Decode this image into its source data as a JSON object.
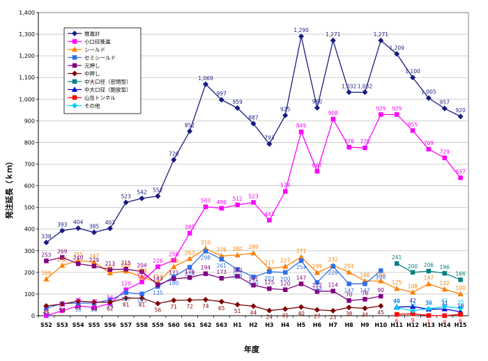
{
  "chart_data": {
    "type": "line",
    "title": "",
    "xlabel": "年度",
    "ylabel": "発注延長（ｋｍ）",
    "ylim": [
      0,
      1400
    ],
    "yticks": [
      "0",
      "100",
      "200",
      "300",
      "400",
      "500",
      "600",
      "700",
      "800",
      "900",
      "1,000",
      "1,100",
      "1,200",
      "1,300",
      "1,400"
    ],
    "grid": true,
    "legend_position": "top-left",
    "categories": [
      "S52",
      "S53",
      "S54",
      "S55",
      "S56",
      "S57",
      "S58",
      "S59",
      "S60",
      "S61",
      "S62",
      "S63",
      "H1",
      "H2",
      "H3",
      "H4",
      "H5",
      "H6",
      "H7",
      "H8",
      "H9",
      "H10",
      "H11",
      "H12",
      "H13",
      "H14",
      "H15"
    ],
    "series": [
      {
        "name": "推進計",
        "color": "#1a1a80",
        "marker": "diamond",
        "values": [
          338,
          393,
          404,
          385,
          403,
          523,
          542,
          552,
          720,
          852,
          1069,
          997,
          959,
          887,
          793,
          925,
          1290,
          960,
          1271,
          1032,
          1032,
          1271,
          1209,
          1100,
          1005,
          957,
          920
        ],
        "labels": [
          "338",
          "393",
          "404",
          "385",
          "403",
          "523",
          "542",
          "552",
          "720",
          "852",
          "1,069",
          "997",
          "959",
          "887",
          "793",
          "925",
          "1,290",
          "960",
          "1,271",
          "1,032",
          "1,032",
          "1,271",
          "1,209",
          "1,100",
          "1,005",
          "957",
          "920"
        ]
      },
      {
        "name": "小口径推進",
        "color": "#ff00ff",
        "marker": "square",
        "values": [
          0,
          23,
          45,
          37,
          56,
          120,
          156,
          226,
          256,
          381,
          503,
          496,
          512,
          523,
          441,
          574,
          849,
          667,
          908,
          778,
          775,
          929,
          929,
          855,
          769,
          729,
          637
        ],
        "labels": [
          "0",
          "23",
          "45",
          "37",
          "56",
          "120",
          "156",
          "226",
          "256",
          "381",
          "503",
          "496",
          "512",
          "523",
          "441",
          "574",
          "849",
          "667",
          "908",
          "778",
          "775",
          "929",
          "929",
          "855",
          "769",
          "729",
          "637"
        ]
      },
      {
        "name": "シールド",
        "color": "#ff8000",
        "marker": "triangle",
        "values": [
          169,
          232,
          255,
          247,
          197,
          206,
          179,
          153,
          226,
          263,
          310,
          276,
          280,
          289,
          217,
          227,
          271,
          199,
          232,
          201,
          160,
          160,
          125,
          108,
          147,
          122,
          100
        ],
        "labels": [
          "169",
          "232",
          "255",
          "247",
          "197",
          "206",
          "179",
          "153",
          "226",
          "263",
          "310",
          "276",
          "280",
          "289",
          "217",
          "227",
          "271",
          "199",
          "232",
          "201",
          "160",
          "160",
          "125",
          "108",
          "147",
          "122",
          "100"
        ]
      },
      {
        "name": "セミシールド",
        "color": "#2f6fe8",
        "marker": "square",
        "values": [
          35,
          56,
          58,
          58,
          73,
          107,
          101,
          135,
          180,
          224,
          298,
          261,
          214,
          179,
          203,
          200,
          254,
          154,
          228,
          147,
          147,
          208,
          null,
          null,
          null,
          null,
          null
        ],
        "labels": [
          "35",
          "56",
          "58",
          "58",
          "73",
          "107",
          "101",
          "135",
          "180",
          "224",
          "298",
          "261",
          "214",
          "179",
          "203",
          "200",
          "254",
          "154",
          "228",
          "147",
          "147",
          "208",
          "",
          "",
          "",
          "",
          ""
        ]
      },
      {
        "name": "元押し",
        "color": "#800080",
        "marker": "square",
        "values": [
          253,
          269,
          240,
          229,
          213,
          215,
          204,
          143,
          171,
          176,
          194,
          173,
          182,
          141,
          125,
          120,
          147,
          112,
          114,
          70,
          76,
          90,
          null,
          null,
          null,
          null,
          null
        ],
        "labels": [
          "253",
          "269",
          "240",
          "229",
          "213",
          "215",
          "204",
          "143",
          "171",
          "176",
          "194",
          "173",
          "182",
          "141",
          "125",
          "120",
          "147",
          "112",
          "114",
          "70",
          "76",
          "90",
          "",
          "",
          "",
          "",
          ""
        ]
      },
      {
        "name": "中押し",
        "color": "#800000",
        "marker": "diamond",
        "values": [
          45,
          54,
          67,
          63,
          62,
          81,
          81,
          56,
          71,
          72,
          74,
          65,
          51,
          44,
          24,
          31,
          40,
          27,
          23,
          38,
          34,
          45,
          null,
          null,
          null,
          null,
          null
        ],
        "labels": [
          "45",
          "54",
          "67",
          "63",
          "62",
          "81",
          "81",
          "56",
          "71",
          "72",
          "74",
          "65",
          "51",
          "44",
          "24",
          "31",
          "40",
          "27",
          "23",
          "38",
          "34",
          "45",
          "",
          "",
          "",
          "",
          ""
        ]
      },
      {
        "name": "中大口径（密閉型）",
        "color": "#008080",
        "marker": "square",
        "values": [
          null,
          null,
          null,
          null,
          null,
          null,
          null,
          null,
          null,
          null,
          null,
          null,
          null,
          null,
          null,
          null,
          null,
          null,
          null,
          null,
          null,
          null,
          241,
          200,
          206,
          196,
          166
        ],
        "labels": [
          "",
          "",
          "",
          "",
          "",
          "",
          "",
          "",
          "",
          "",
          "",
          "",
          "",
          "",
          "",
          "",
          "",
          "",
          "",
          "",
          "",
          "",
          "241",
          "200",
          "206",
          "196",
          "166"
        ]
      },
      {
        "name": "中大口径（開放型）",
        "color": "#0000cc",
        "marker": "triangle",
        "values": [
          null,
          null,
          null,
          null,
          null,
          null,
          null,
          null,
          null,
          null,
          null,
          null,
          null,
          null,
          null,
          null,
          null,
          null,
          null,
          null,
          null,
          null,
          40,
          42,
          30,
          31,
          18
        ],
        "labels": [
          "",
          "",
          "",
          "",
          "",
          "",
          "",
          "",
          "",
          "",
          "",
          "",
          "",
          "",
          "",
          "",
          "",
          "",
          "",
          "",
          "",
          "",
          "40",
          "42",
          "30",
          "31",
          "18"
        ]
      },
      {
        "name": "山岳トンネル",
        "color": "#ff0000",
        "marker": "square",
        "values": [
          null,
          null,
          null,
          null,
          null,
          null,
          null,
          null,
          null,
          null,
          null,
          null,
          null,
          null,
          null,
          null,
          null,
          null,
          null,
          null,
          null,
          null,
          6,
          9,
          1,
          0,
          6
        ],
        "labels": [
          "",
          "",
          "",
          "",
          "",
          "",
          "",
          "",
          "",
          "",
          "",
          "",
          "",
          "",
          "",
          "",
          "",
          "",
          "",
          "",
          "",
          "",
          "6",
          "9",
          "1",
          "0",
          "6"
        ]
      },
      {
        "name": "その他",
        "color": "#00ccff",
        "marker": "diamond",
        "values": [
          null,
          null,
          null,
          null,
          null,
          null,
          null,
          null,
          null,
          null,
          null,
          null,
          null,
          null,
          null,
          null,
          null,
          null,
          null,
          null,
          null,
          null,
          37,
          23,
          32,
          42,
          35
        ],
        "labels": [
          "",
          "",
          "",
          "",
          "",
          "",
          "",
          "",
          "",
          "",
          "",
          "",
          "",
          "",
          "",
          "",
          "",
          "",
          "",
          "",
          "",
          "",
          "37",
          "23",
          "32",
          "42",
          "35"
        ]
      }
    ]
  }
}
